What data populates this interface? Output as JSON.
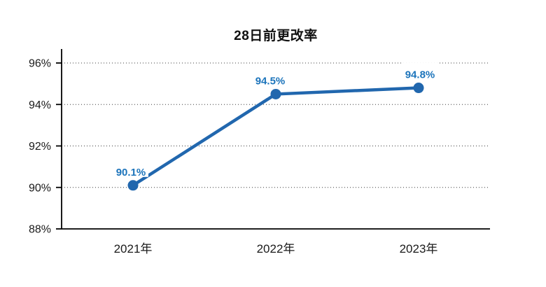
{
  "title": "28日前更改率",
  "chart_data": {
    "type": "line",
    "title": "28日前更改率",
    "categories": [
      "2021年",
      "2022年",
      "2023年"
    ],
    "series": [
      {
        "name": "28日前更改率",
        "values": [
          90.1,
          94.5,
          94.8
        ]
      }
    ],
    "data_labels": [
      "90.1%",
      "94.5%",
      "94.8%"
    ],
    "y_ticks": [
      {
        "value": 88,
        "label": "88%"
      },
      {
        "value": 90,
        "label": "90%"
      },
      {
        "value": 92,
        "label": "92%"
      },
      {
        "value": 94,
        "label": "94%"
      },
      {
        "value": 96,
        "label": "96%"
      }
    ],
    "ylim": [
      88,
      96
    ],
    "xlabel": "",
    "ylabel": "",
    "grid": "horizontal-dotted",
    "legend": "none",
    "colors": {
      "line": "#2167AE",
      "marker": "#2167AE",
      "data_label": "#1C74BB",
      "axis": "#000000",
      "tick_label": "#1A1A1A",
      "gridline": "#3D3D3D",
      "background": "#FFFFFF"
    }
  }
}
